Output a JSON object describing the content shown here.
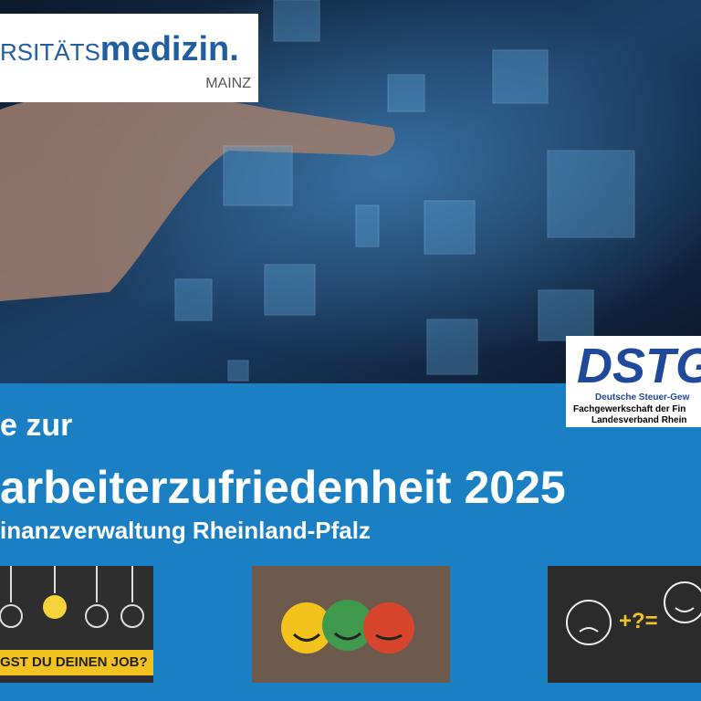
{
  "logo": {
    "name_light": "RSITÄTS",
    "name_bold": "medizin.",
    "city": "MAINZ"
  },
  "dstg": {
    "mark": "DSTG",
    "line1": "Deutsche Steuer-Gew",
    "line2": "Fachgewerkschaft der Fin",
    "line3": "Landesverband Rhein"
  },
  "headline": {
    "line1": "e zur",
    "line2": "arbeiterzufriedenheit 2025",
    "line3": "inanzverwaltung Rheinland-Pfalz"
  },
  "images": {
    "bulbs_caption": "GST DU DEINEN JOB?"
  }
}
